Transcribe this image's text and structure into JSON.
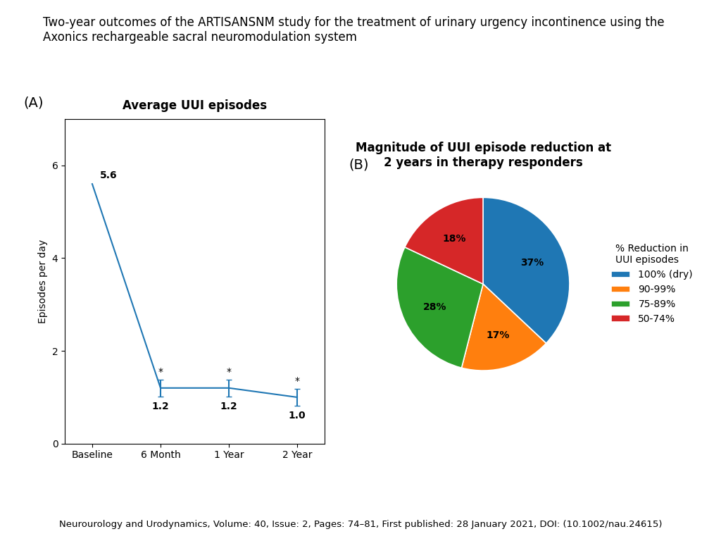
{
  "title": "Two-year outcomes of the ARTISAN​SNM study for the treatment of urinary urgency incontinence using the\nAxonics rechargeable sacral neuromodulation system",
  "annotations": [
    {
      "text": "Neurourology and Urodynamics, Volume: 40, Issue: 2, Pages: 74–81, First published: 28 January 2021, DOI: (10.1002/nau.24615)"
    }
  ],
  "chart_data": [
    {
      "type": "line",
      "title": "Average UUI episodes",
      "y_label": "Episodes per day",
      "categories": [
        "Baseline",
        "6 Month",
        "1 Year",
        "2 Year"
      ],
      "values": [
        5.6,
        1.2,
        1.2,
        1.0
      ],
      "errors": [
        null,
        0.18,
        0.18,
        0.18
      ],
      "data_labels": true,
      "ylim": [
        0,
        7
      ],
      "yticks": [
        0,
        2,
        4,
        6
      ],
      "grid": false,
      "annotations": [
        {
          "text": "(A)"
        },
        {
          "category": "6 Month",
          "text": "*"
        },
        {
          "category": "1 Year",
          "text": "*"
        },
        {
          "category": "2 Year",
          "text": "*"
        }
      ]
    },
    {
      "type": "pie",
      "title": "Magnitude of UUI episode reduction at\n2 years in therapy responders",
      "categories": [
        "100% (dry)",
        "90-99%",
        "75-89%",
        "50-74%"
      ],
      "values": [
        37,
        17,
        28,
        18
      ],
      "value_labels": [
        "37%",
        "17%",
        "28%",
        "18%"
      ],
      "data_labels": true,
      "legend": "center left",
      "legend_title": "% Reduction in\nUUI episodes",
      "annotations": [
        {
          "text": "(B)"
        }
      ]
    }
  ]
}
